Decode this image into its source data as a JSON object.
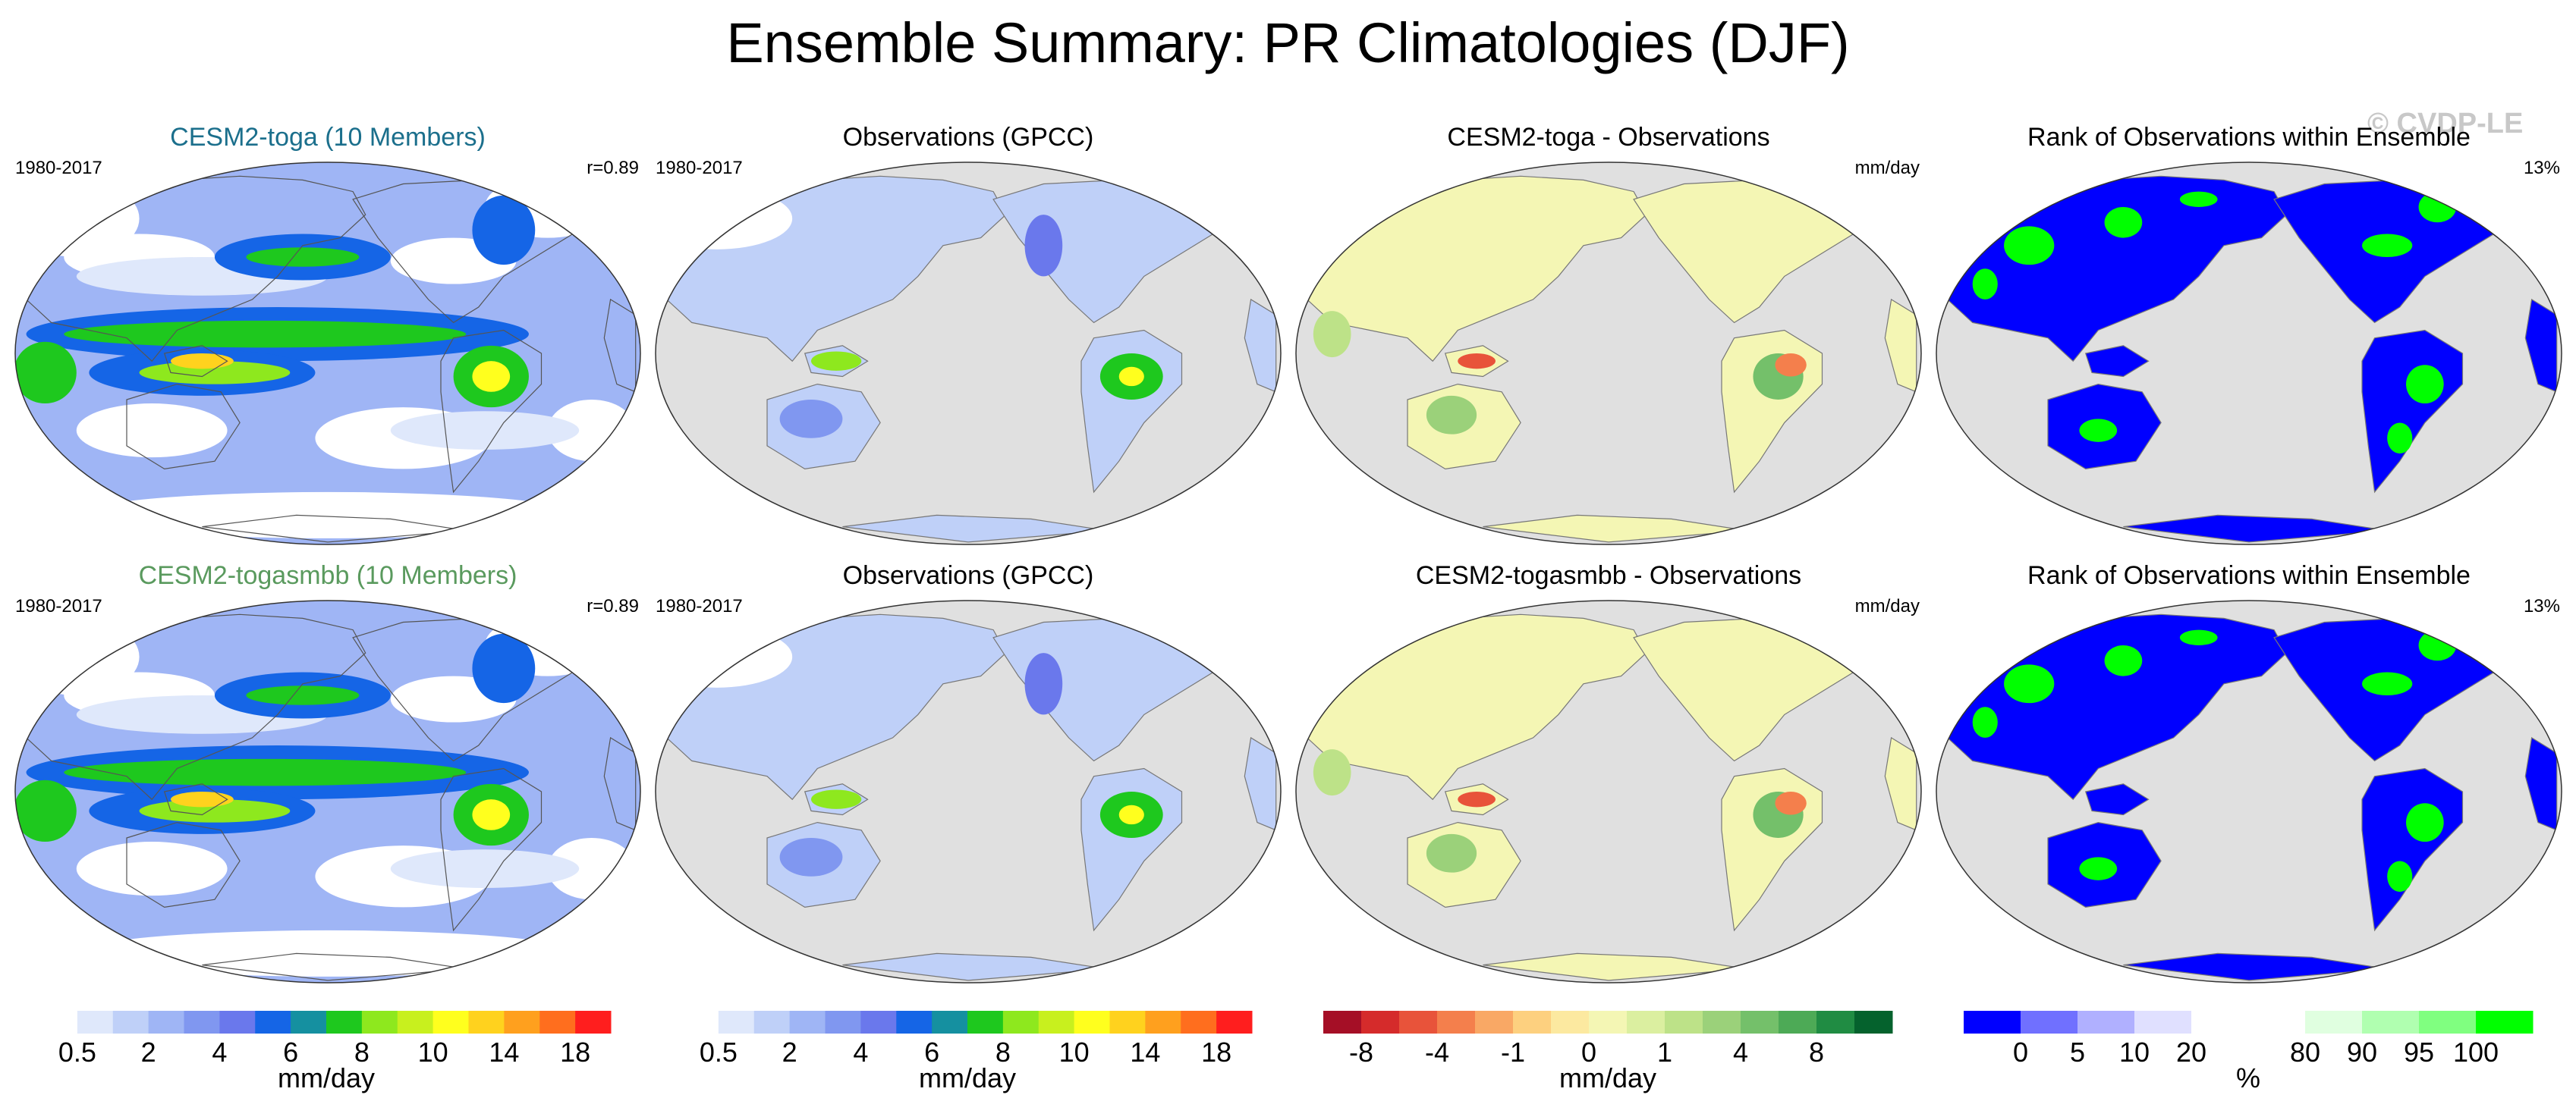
{
  "figure": {
    "title": "Ensemble Summary: PR Climatologies (DJF)",
    "watermark": "© CVDP-LE"
  },
  "rows": [
    {
      "panels": [
        {
          "title": "CESM2-toga (10 Members)",
          "left_label": "1980-2017",
          "right_label": "r=0.89",
          "kind": "model"
        },
        {
          "title": "Observations (GPCC)",
          "left_label": "1980-2017",
          "right_label": "",
          "kind": "obs"
        },
        {
          "title": "CESM2-toga - Observations",
          "left_label": "",
          "right_label": "mm/day",
          "kind": "diff"
        },
        {
          "title": "Rank of Observations within Ensemble",
          "left_label": "",
          "right_label": "13%",
          "kind": "rank"
        }
      ]
    },
    {
      "panels": [
        {
          "title": "CESM2-togasmbb (10 Members)",
          "left_label": "1980-2017",
          "right_label": "r=0.89",
          "kind": "model"
        },
        {
          "title": "Observations (GPCC)",
          "left_label": "1980-2017",
          "right_label": "",
          "kind": "obs"
        },
        {
          "title": "CESM2-togasmbb - Observations",
          "left_label": "",
          "right_label": "mm/day",
          "kind": "diff"
        },
        {
          "title": "Rank of Observations within Ensemble",
          "left_label": "",
          "right_label": "13%",
          "kind": "rank"
        }
      ]
    }
  ],
  "colorbars": [
    {
      "unit": "mm/day",
      "colors": [
        "#ffffff",
        "#dfe8fb",
        "#bfd0f8",
        "#9fb5f5",
        "#8097f0",
        "#6a78ec",
        "#1565e6",
        "#1590a0",
        "#1ec81e",
        "#8ee81e",
        "#c8f01e",
        "#ffff1e",
        "#ffd21e",
        "#ffa01e",
        "#ff6e1e",
        "#ff1e1e"
      ],
      "tick_labels": [
        "0.5",
        "2",
        "4",
        "6",
        "8",
        "10",
        "14",
        "18"
      ]
    },
    {
      "unit": "mm/day",
      "colors": [
        "#ffffff",
        "#dfe8fb",
        "#bfd0f8",
        "#9fb5f5",
        "#8097f0",
        "#6a78ec",
        "#1565e6",
        "#1590a0",
        "#1ec81e",
        "#8ee81e",
        "#c8f01e",
        "#ffff1e",
        "#ffd21e",
        "#ffa01e",
        "#ff6e1e",
        "#ff1e1e"
      ],
      "tick_labels": [
        "0.5",
        "2",
        "4",
        "6",
        "8",
        "10",
        "14",
        "18"
      ]
    },
    {
      "unit": "mm/day",
      "colors": [
        "#a50f26",
        "#d52b2b",
        "#e8533a",
        "#f47f4c",
        "#f9a865",
        "#fdd07f",
        "#fce9a0",
        "#f4f6b4",
        "#dbefa0",
        "#bde288",
        "#9bd17a",
        "#74c06a",
        "#4daa56",
        "#208c43",
        "#05622d"
      ],
      "tick_labels": [
        "-8",
        "-4",
        "-1",
        "0",
        "1",
        "4",
        "8"
      ]
    },
    {
      "unit": "%",
      "colors": [
        "#0000ff",
        "#7070ff",
        "#b0b0ff",
        "#e0e0ff",
        "#ffffff",
        "#ffffff",
        "#e0ffe0",
        "#b0ffb0",
        "#80ff80",
        "#00ff00"
      ],
      "tick_labels": [
        "0",
        "5",
        "10",
        "20",
        "80",
        "90",
        "95",
        "100"
      ]
    }
  ]
}
